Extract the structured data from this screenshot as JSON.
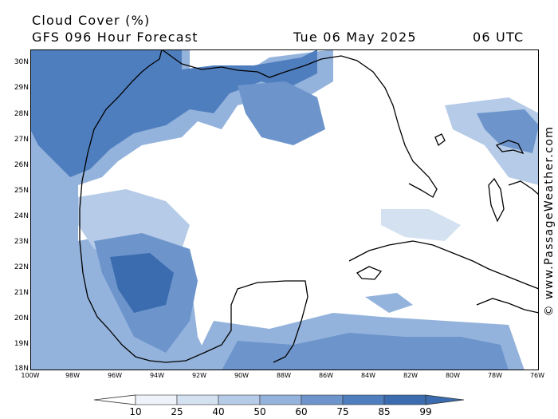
{
  "header": {
    "line1": "Cloud Cover (%)",
    "line2": "GFS 096 Hour Forecast",
    "date": "Tue 06 May 2025",
    "time": "06 UTC"
  },
  "credit": "© www.PassageWeather.com",
  "map": {
    "lat_labels": [
      "30N",
      "29N",
      "28N",
      "27N",
      "26N",
      "25N",
      "24N",
      "23N",
      "22N",
      "21N",
      "20N",
      "19N",
      "18N"
    ],
    "lon_labels": [
      "100W",
      "98W",
      "96W",
      "94W",
      "92W",
      "90W",
      "88W",
      "86W",
      "84W",
      "82W",
      "80W",
      "78W",
      "76W"
    ],
    "land_color": "#ffffff",
    "coast_color": "#000000"
  },
  "colorbar": {
    "labels": [
      "10",
      "25",
      "40",
      "50",
      "60",
      "75",
      "85",
      "99"
    ],
    "colors": [
      "#ffffff",
      "#eef3fa",
      "#d4e1f1",
      "#b6cbe7",
      "#94b3dc",
      "#6d95cc",
      "#4f7ebf",
      "#3a6caf"
    ]
  }
}
